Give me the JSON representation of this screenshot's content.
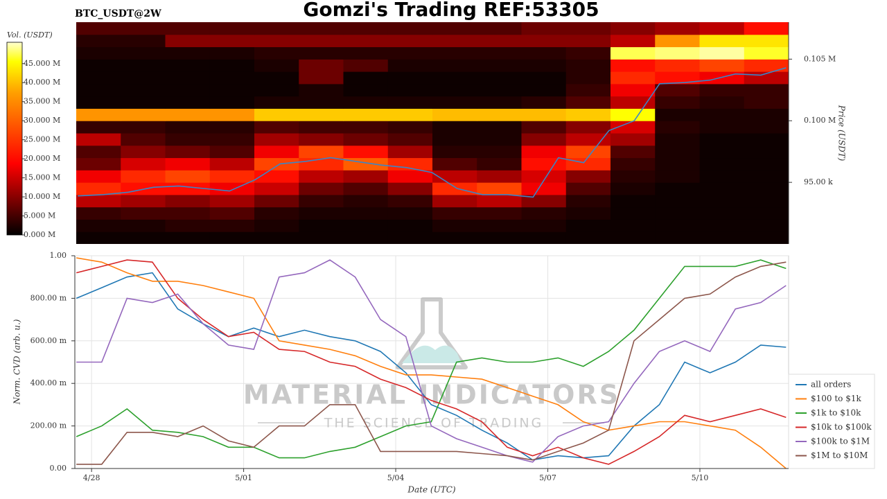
{
  "title": "Gomzi's Trading REF:53305",
  "watermark": {
    "title": "MATERIAL INDICATORS",
    "subtitle": "THE SCIENCE OF TRADING"
  },
  "chart_data": [
    {
      "type": "heatmap",
      "label": "BTC_USDT@2W",
      "ylabel": "Price (USDT)",
      "colormap": "hot",
      "xlim": [
        117.67,
        131.75
      ],
      "xbins": [
        117.67,
        118.55,
        119.43,
        120.31,
        121.19,
        122.07,
        122.95,
        123.83,
        124.71,
        125.59,
        126.47,
        127.35,
        128.23,
        129.11,
        129.99,
        130.87,
        131.75
      ],
      "ylim": [
        90000,
        108000
      ],
      "ybins": [
        90000,
        91000,
        92000,
        93000,
        94000,
        95000,
        96000,
        97000,
        98000,
        99000,
        100000,
        101000,
        102000,
        103000,
        104000,
        105000,
        106000,
        107000,
        108000
      ],
      "yticks": [
        {
          "value": 95000,
          "label": "95.00 k"
        },
        {
          "value": 100000,
          "label": "0.100 M"
        },
        {
          "value": 105000,
          "label": "0.105 M"
        }
      ],
      "values": [
        [
          1000000.0,
          1000000.0,
          1000000.0,
          1000000.0,
          1000000.0,
          1000000.0,
          1000000.0,
          1000000.0,
          1000000.0,
          1000000.0,
          1000000.0,
          1000000.0,
          1000000.0,
          1000000.0,
          1000000.0,
          1000000.0
        ],
        [
          2000000.0,
          2000000.0,
          3000000.0,
          3000000.0,
          2000000.0,
          1000000.0,
          1000000.0,
          1000000.0,
          2000000.0,
          2000000.0,
          2000000.0,
          1000000.0,
          1000000.0,
          1000000.0,
          1000000.0,
          1000000.0
        ],
        [
          4000000.0,
          5000000.0,
          5000000.0,
          6000000.0,
          3000000.0,
          2000000.0,
          2000000.0,
          2000000.0,
          4000000.0,
          4000000.0,
          3000000.0,
          2000000.0,
          1000000.0,
          1000000.0,
          1000000.0,
          1000000.0
        ],
        [
          14000000.0,
          12000000.0,
          10000000.0,
          12000000.0,
          8000000.0,
          4000000.0,
          3000000.0,
          4000000.0,
          12000000.0,
          14000000.0,
          10000000.0,
          3000000.0,
          1000000.0,
          1000000.0,
          1000000.0,
          1000000.0
        ],
        [
          22000000.0,
          20000000.0,
          20000000.0,
          18000000.0,
          15000000.0,
          8000000.0,
          6000000.0,
          10000000.0,
          22000000.0,
          24000000.0,
          18000000.0,
          6000000.0,
          2000000.0,
          1000000.0,
          1000000.0,
          1000000.0
        ],
        [
          18000000.0,
          22000000.0,
          24000000.0,
          22000000.0,
          20000000.0,
          14000000.0,
          12000000.0,
          18000000.0,
          14000000.0,
          12000000.0,
          16000000.0,
          10000000.0,
          3000000.0,
          2000000.0,
          1000000.0,
          1000000.0
        ],
        [
          8000000.0,
          16000000.0,
          18000000.0,
          14000000.0,
          24000000.0,
          22000000.0,
          26000000.0,
          22000000.0,
          6000000.0,
          4000000.0,
          20000000.0,
          22000000.0,
          4000000.0,
          2000000.0,
          1000000.0,
          1000000.0
        ],
        [
          6000000.0,
          10000000.0,
          8000000.0,
          6000000.0,
          18000000.0,
          24000000.0,
          20000000.0,
          12000000.0,
          3000000.0,
          3000000.0,
          18000000.0,
          24000000.0,
          6000000.0,
          2000000.0,
          1000000.0,
          1000000.0
        ],
        [
          14000000.0,
          6000000.0,
          4000000.0,
          4000000.0,
          12000000.0,
          10000000.0,
          8000000.0,
          6000000.0,
          2000000.0,
          2000000.0,
          10000000.0,
          14000000.0,
          12000000.0,
          2000000.0,
          1000000.0,
          1000000.0
        ],
        [
          4000000.0,
          4000000.0,
          3000000.0,
          3000000.0,
          6000000.0,
          5000000.0,
          5000000.0,
          4000000.0,
          2000000.0,
          2000000.0,
          6000000.0,
          10000000.0,
          16000000.0,
          3000000.0,
          2000000.0,
          2000000.0
        ],
        [
          30000000.0,
          30000000.0,
          30000000.0,
          30000000.0,
          34000000.0,
          34000000.0,
          34000000.0,
          34000000.0,
          33000000.0,
          33000000.0,
          33000000.0,
          34000000.0,
          38000000.0,
          2000000.0,
          2000000.0,
          2000000.0
        ],
        [
          1000000.0,
          1000000.0,
          1000000.0,
          1000000.0,
          2000000.0,
          2000000.0,
          2000000.0,
          2000000.0,
          2000000.0,
          2000000.0,
          3000000.0,
          6000000.0,
          14000000.0,
          4000000.0,
          3000000.0,
          4000000.0
        ],
        [
          1000000.0,
          1000000.0,
          1000000.0,
          1000000.0,
          1000000.0,
          2000000.0,
          1000000.0,
          1000000.0,
          1000000.0,
          1000000.0,
          1000000.0,
          4000000.0,
          18000000.0,
          6000000.0,
          4000000.0,
          4000000.0
        ],
        [
          1000000.0,
          1000000.0,
          1000000.0,
          1000000.0,
          1000000.0,
          8000000.0,
          1000000.0,
          1000000.0,
          1000000.0,
          1000000.0,
          1000000.0,
          3000000.0,
          22000000.0,
          20000000.0,
          18000000.0,
          14000000.0
        ],
        [
          1000000.0,
          1000000.0,
          1000000.0,
          1000000.0,
          2000000.0,
          8000000.0,
          6000000.0,
          2000000.0,
          2000000.0,
          2000000.0,
          2000000.0,
          3000000.0,
          20000000.0,
          22000000.0,
          24000000.0,
          22000000.0
        ],
        [
          2000000.0,
          2000000.0,
          2000000.0,
          2000000.0,
          3000000.0,
          3000000.0,
          3000000.0,
          3000000.0,
          3000000.0,
          3000000.0,
          3000000.0,
          4000000.0,
          42000000.0,
          44000000.0,
          46000000.0,
          40000000.0
        ],
        [
          3000000.0,
          3000000.0,
          10000000.0,
          10000000.0,
          10000000.0,
          10000000.0,
          10000000.0,
          10000000.0,
          10000000.0,
          10000000.0,
          10000000.0,
          10000000.0,
          14000000.0,
          30000000.0,
          36000000.0,
          36000000.0
        ],
        [
          6000000.0,
          6000000.0,
          6000000.0,
          6000000.0,
          6000000.0,
          6000000.0,
          6000000.0,
          6000000.0,
          6000000.0,
          6000000.0,
          8000000.0,
          8000000.0,
          10000000.0,
          12000000.0,
          14000000.0,
          20000000.0
        ]
      ],
      "colorbar": {
        "label": "Vol. (USDT)",
        "lim": [
          0,
          50600000
        ],
        "ticks": [
          {
            "value": 0,
            "label": "0.000 M"
          },
          {
            "value": 5000000,
            "label": "5.000 M"
          },
          {
            "value": 10000000,
            "label": "10.000 M"
          },
          {
            "value": 15000000,
            "label": "15.000 M"
          },
          {
            "value": 20000000,
            "label": "20.000 M"
          },
          {
            "value": 25000000,
            "label": "25.000 M"
          },
          {
            "value": 30000000,
            "label": "30.000 M"
          },
          {
            "value": 35000000,
            "label": "35.000 M"
          },
          {
            "value": 40000000,
            "label": "40.000 M"
          },
          {
            "value": 45000000,
            "label": "45.000 M"
          }
        ]
      },
      "price": {
        "color": "#3a86c8",
        "x": [
          117.7,
          118.2,
          118.7,
          119.2,
          119.7,
          120.2,
          120.7,
          121.2,
          121.7,
          122.2,
          122.7,
          123.2,
          123.7,
          124.2,
          124.7,
          125.2,
          125.7,
          126.2,
          126.7,
          127.2,
          127.7,
          128.2,
          128.7,
          129.2,
          129.7,
          130.2,
          130.7,
          131.2,
          131.7
        ],
        "values": [
          93900,
          94000,
          94200,
          94600,
          94700,
          94500,
          94300,
          95200,
          96500,
          96700,
          97000,
          96700,
          96400,
          96200,
          95800,
          94500,
          94000,
          94000,
          93800,
          97000,
          96600,
          99200,
          100000,
          103000,
          103100,
          103300,
          103800,
          103700,
          104300
        ]
      }
    },
    {
      "type": "line",
      "xlabel": "Date (UTC)",
      "ylabel": "Norm. CVD (arb. u.)",
      "grid": true,
      "legend": "lower right",
      "xlim": [
        117.67,
        131.75
      ],
      "xticks": [
        {
          "value": 118,
          "label": "4/28"
        },
        {
          "value": 121,
          "label": "5/01"
        },
        {
          "value": 124,
          "label": "5/04"
        },
        {
          "value": 127,
          "label": "5/07"
        },
        {
          "value": 130,
          "label": "5/10"
        }
      ],
      "ylim": [
        0,
        1
      ],
      "yticks": [
        {
          "value": 0,
          "label": "0.00"
        },
        {
          "value": 0.2,
          "label": "200.00 m"
        },
        {
          "value": 0.4,
          "label": "400.00 m"
        },
        {
          "value": 0.6,
          "label": "600.00 m"
        },
        {
          "value": 0.8,
          "label": "800.00 m"
        },
        {
          "value": 1,
          "label": "1.00"
        }
      ],
      "x": [
        117.7,
        118.2,
        118.7,
        119.2,
        119.7,
        120.2,
        120.7,
        121.2,
        121.7,
        122.2,
        122.7,
        123.2,
        123.7,
        124.2,
        124.7,
        125.2,
        125.7,
        126.2,
        126.7,
        127.2,
        127.7,
        128.2,
        128.7,
        129.2,
        129.7,
        130.2,
        130.7,
        131.2,
        131.7
      ],
      "series": [
        {
          "name": "all orders",
          "color": "#1f77b4",
          "values": [
            0.8,
            0.85,
            0.9,
            0.92,
            0.75,
            0.68,
            0.62,
            0.66,
            0.62,
            0.65,
            0.62,
            0.6,
            0.55,
            0.45,
            0.3,
            0.25,
            0.18,
            0.12,
            0.04,
            0.06,
            0.05,
            0.06,
            0.2,
            0.3,
            0.5,
            0.45,
            0.5,
            0.58,
            0.57
          ]
        },
        {
          "name": "$100 to $1k",
          "color": "#ff7f0e",
          "values": [
            0.99,
            0.97,
            0.92,
            0.88,
            0.88,
            0.86,
            0.83,
            0.8,
            0.6,
            0.58,
            0.56,
            0.53,
            0.48,
            0.44,
            0.44,
            0.43,
            0.42,
            0.38,
            0.34,
            0.3,
            0.22,
            0.18,
            0.2,
            0.22,
            0.22,
            0.2,
            0.18,
            0.1,
            0.0
          ]
        },
        {
          "name": "$1k to $10k",
          "color": "#2ca02c",
          "values": [
            0.15,
            0.2,
            0.28,
            0.18,
            0.17,
            0.15,
            0.1,
            0.1,
            0.05,
            0.05,
            0.08,
            0.1,
            0.15,
            0.2,
            0.22,
            0.5,
            0.52,
            0.5,
            0.5,
            0.52,
            0.48,
            0.55,
            0.65,
            0.8,
            0.95,
            0.95,
            0.95,
            0.98,
            0.94
          ]
        },
        {
          "name": "$10k to $100k",
          "color": "#d62728",
          "values": [
            0.92,
            0.95,
            0.98,
            0.97,
            0.8,
            0.7,
            0.62,
            0.64,
            0.56,
            0.55,
            0.5,
            0.48,
            0.42,
            0.38,
            0.32,
            0.28,
            0.22,
            0.1,
            0.06,
            0.1,
            0.05,
            0.02,
            0.08,
            0.15,
            0.25,
            0.22,
            0.25,
            0.28,
            0.24
          ]
        },
        {
          "name": "$100k to $1M",
          "color": "#9467bd",
          "values": [
            0.5,
            0.5,
            0.8,
            0.78,
            0.82,
            0.68,
            0.58,
            0.56,
            0.9,
            0.92,
            0.98,
            0.9,
            0.7,
            0.62,
            0.2,
            0.14,
            0.1,
            0.06,
            0.03,
            0.15,
            0.2,
            0.22,
            0.4,
            0.55,
            0.6,
            0.55,
            0.75,
            0.78,
            0.86
          ]
        },
        {
          "name": "$1M to $10M",
          "color": "#8c564b",
          "values": [
            0.02,
            0.02,
            0.17,
            0.17,
            0.15,
            0.2,
            0.13,
            0.1,
            0.2,
            0.2,
            0.3,
            0.3,
            0.08,
            0.08,
            0.08,
            0.08,
            0.07,
            0.06,
            0.04,
            0.08,
            0.12,
            0.18,
            0.6,
            0.7,
            0.8,
            0.82,
            0.9,
            0.95,
            0.97
          ]
        }
      ]
    }
  ]
}
